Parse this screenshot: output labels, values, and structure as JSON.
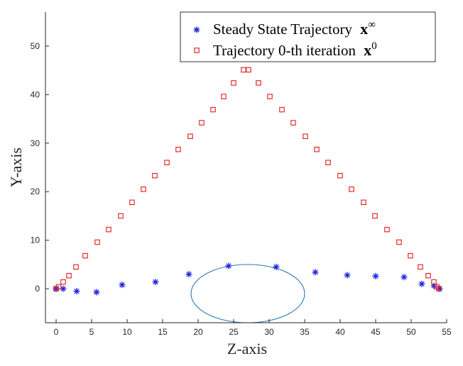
{
  "chart_data": {
    "type": "scatter",
    "xlabel": "Z-axis",
    "ylabel": "Y-axis",
    "xlim": [
      -1.5,
      55
    ],
    "ylim": [
      -7,
      57
    ],
    "xticks": [
      0,
      5,
      10,
      15,
      20,
      25,
      30,
      35,
      40,
      45,
      50,
      55
    ],
    "yticks": [
      0,
      10,
      20,
      30,
      40,
      50
    ],
    "grid": false,
    "legend_position": "top-right",
    "colors": {
      "steady": "#1f1fe6",
      "initial": "#e01a1a",
      "ellipse": "#2a79b8",
      "axis": "#262626"
    },
    "series": [
      {
        "name": "Steady State Trajectory",
        "math": "∞",
        "marker": "asterisk",
        "x": [
          0.0,
          1.0,
          2.9,
          5.7,
          9.3,
          14.0,
          18.7,
          24.3,
          31.0,
          36.5,
          41.0,
          45.0,
          49.0,
          51.5,
          53.2,
          54.0
        ],
        "y": [
          0.0,
          0.0,
          -0.5,
          -0.7,
          0.8,
          1.4,
          3.0,
          4.7,
          4.5,
          3.4,
          2.8,
          2.6,
          2.4,
          1.0,
          0.6,
          0.0
        ]
      },
      {
        "name": "Trajectory 0-th iteration",
        "math": "0",
        "marker": "square",
        "x": [
          0.0,
          0.35,
          1.0,
          1.8,
          2.8,
          4.1,
          5.8,
          7.4,
          9.1,
          10.7,
          12.3,
          13.9,
          15.6,
          17.2,
          18.9,
          20.5,
          22.1,
          23.6,
          25.0,
          26.4,
          27.1,
          28.5,
          30.1,
          31.8,
          33.4,
          35.1,
          36.7,
          38.3,
          40.0,
          41.6,
          43.3,
          44.9,
          46.6,
          48.3,
          49.9,
          51.3,
          52.4,
          53.2,
          53.6,
          53.9
        ],
        "y": [
          0.0,
          0.4,
          1.4,
          2.7,
          4.5,
          6.8,
          9.6,
          12.2,
          15.0,
          17.8,
          20.5,
          23.3,
          26.0,
          28.7,
          31.4,
          34.2,
          36.9,
          39.6,
          42.4,
          45.1,
          45.1,
          42.4,
          39.6,
          36.9,
          34.2,
          31.4,
          28.7,
          26.0,
          23.3,
          20.5,
          17.8,
          15.0,
          12.2,
          9.6,
          6.8,
          4.5,
          2.7,
          1.4,
          0.4,
          0.0
        ]
      }
    ],
    "annotations": [
      {
        "type": "ellipse",
        "cx": 27.0,
        "cy": -1.0,
        "rx": 8.0,
        "ry": 6.0
      }
    ]
  }
}
